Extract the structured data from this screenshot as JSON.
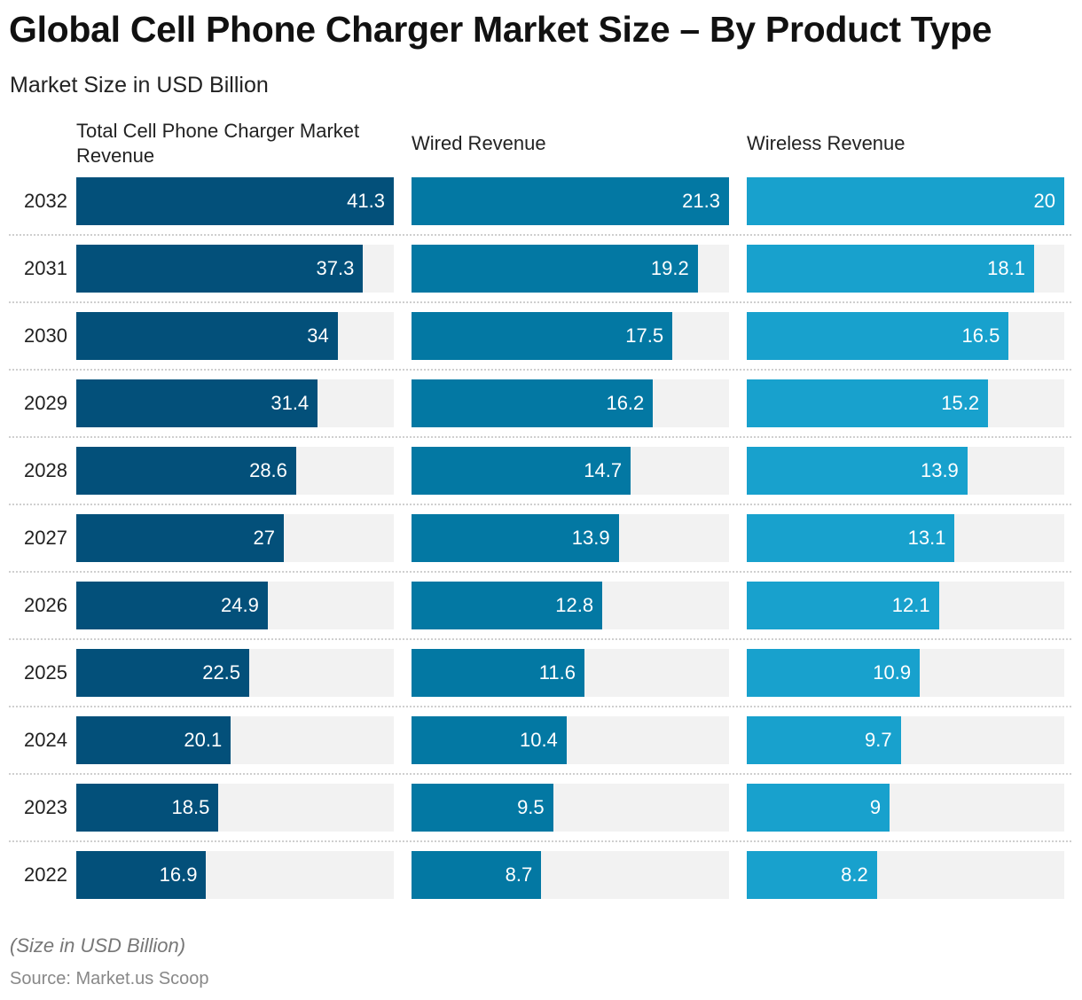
{
  "chart_data": {
    "type": "bar",
    "orientation": "horizontal",
    "title": "Global Cell Phone Charger Market Size – By Product Type",
    "subtitle": "Market Size in USD Billion",
    "categories": [
      "2032",
      "2031",
      "2030",
      "2029",
      "2028",
      "2027",
      "2026",
      "2025",
      "2024",
      "2023",
      "2022"
    ],
    "series": [
      {
        "name": "Total Cell Phone Charger Market Revenue",
        "color": "#03507a",
        "values": [
          41.3,
          37.3,
          34,
          31.4,
          28.6,
          27,
          24.9,
          22.5,
          20.1,
          18.5,
          16.9
        ]
      },
      {
        "name": "Wired Revenue",
        "color": "#0378a3",
        "values": [
          21.3,
          19.2,
          17.5,
          16.2,
          14.7,
          13.9,
          12.8,
          11.6,
          10.4,
          9.5,
          8.7
        ]
      },
      {
        "name": "Wireless Revenue",
        "color": "#18a1cd",
        "values": [
          20,
          18.1,
          16.5,
          15.2,
          13.9,
          13.1,
          12.1,
          10.9,
          9.7,
          9,
          8.2
        ]
      }
    ],
    "track_color": "#f2f2f2",
    "grid": false,
    "data_labels": true
  },
  "footer": {
    "note": "(Size in USD Billion)",
    "source": "Source: Market.us Scoop"
  }
}
